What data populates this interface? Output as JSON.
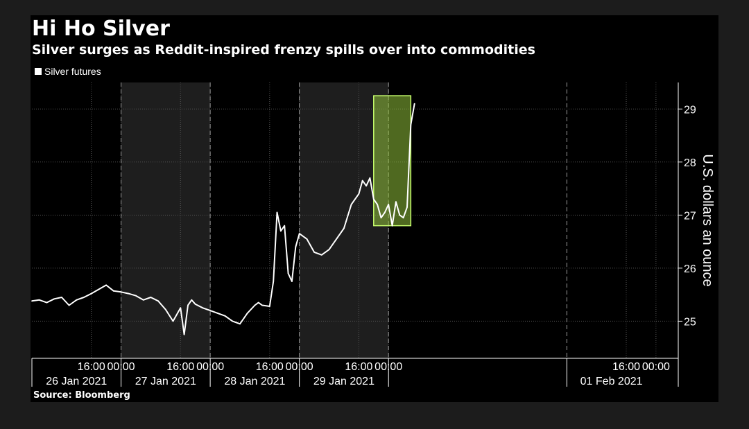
{
  "header": {
    "title": "Hi Ho Silver",
    "subtitle": "Silver surges as Reddit-inspired frenzy spills over into commodities"
  },
  "footer": {
    "source": "Source: Bloomberg"
  },
  "colors": {
    "background": "#000000",
    "line": "#ffffff",
    "highlight_fill": "#8fbf3a",
    "highlight_border": "#c8ff6e",
    "shaded_band": "#1e1e1e",
    "grid": "#555555"
  },
  "chart_data": {
    "type": "line",
    "title": "Hi Ho Silver",
    "subtitle": "Silver surges as Reddit-inspired frenzy spills over into commodities",
    "ylabel": "U.S. dollars an ounce",
    "ylim": [
      24.3,
      29.5
    ],
    "y_ticks": [
      25,
      26,
      27,
      28,
      29
    ],
    "x_time_unit": "hours",
    "xlim": [
      "2021-01-26 00:00",
      "2021-02-02 06:00"
    ],
    "x_tick_labels": [
      {
        "x": "2021-01-26 16:00",
        "label": "16:00"
      },
      {
        "x": "2021-01-27 00:00",
        "label": "00:00"
      },
      {
        "x": "2021-01-27 16:00",
        "label": "16:00"
      },
      {
        "x": "2021-01-28 00:00",
        "label": "00:00"
      },
      {
        "x": "2021-01-28 16:00",
        "label": "16:00"
      },
      {
        "x": "2021-01-29 00:00",
        "label": "00:00"
      },
      {
        "x": "2021-01-29 16:00",
        "label": "16:00"
      },
      {
        "x": "2021-01-30 00:00",
        "label": "00:00"
      },
      {
        "x": "2021-02-01 16:00",
        "label": "16:00"
      },
      {
        "x": "2021-02-02 00:00",
        "label": "00:00"
      }
    ],
    "day_labels": [
      {
        "x": "2021-01-26 12:00",
        "label": "26 Jan 2021"
      },
      {
        "x": "2021-01-27 12:00",
        "label": "27 Jan 2021"
      },
      {
        "x": "2021-01-28 12:00",
        "label": "28 Jan 2021"
      },
      {
        "x": "2021-01-29 12:00",
        "label": "29 Jan 2021"
      },
      {
        "x": "2021-02-01 12:00",
        "label": "01 Feb 2021"
      }
    ],
    "day_boundaries": [
      "2021-01-26 00:00",
      "2021-01-27 00:00",
      "2021-01-28 00:00",
      "2021-01-29 00:00",
      "2021-01-30 00:00",
      "2021-02-01 00:00",
      "2021-02-02 06:00"
    ],
    "shaded_periods": [
      [
        "2021-01-27 00:00",
        "2021-01-28 00:00"
      ],
      [
        "2021-01-29 00:00",
        "2021-01-30 00:00"
      ]
    ],
    "highlight_box": {
      "x": [
        "2021-01-29 20:00",
        "2021-01-30 06:00"
      ],
      "y": [
        26.8,
        29.25
      ]
    },
    "series": [
      {
        "name": "Silver futures",
        "x": [
          "2021-01-26 00:00",
          "2021-01-26 02:00",
          "2021-01-26 04:00",
          "2021-01-26 06:00",
          "2021-01-26 08:00",
          "2021-01-26 10:00",
          "2021-01-26 12:00",
          "2021-01-26 14:00",
          "2021-01-26 16:00",
          "2021-01-26 18:00",
          "2021-01-26 20:00",
          "2021-01-26 22:00",
          "2021-01-27 00:00",
          "2021-01-27 02:00",
          "2021-01-27 04:00",
          "2021-01-27 06:00",
          "2021-01-27 08:00",
          "2021-01-27 10:00",
          "2021-01-27 12:00",
          "2021-01-27 14:00",
          "2021-01-27 16:00",
          "2021-01-27 17:00",
          "2021-01-27 18:00",
          "2021-01-27 19:00",
          "2021-01-27 20:00",
          "2021-01-27 22:00",
          "2021-01-28 00:00",
          "2021-01-28 02:00",
          "2021-01-28 04:00",
          "2021-01-28 06:00",
          "2021-01-28 08:00",
          "2021-01-28 10:00",
          "2021-01-28 12:00",
          "2021-01-28 13:00",
          "2021-01-28 14:00",
          "2021-01-28 16:00",
          "2021-01-28 17:00",
          "2021-01-28 18:00",
          "2021-01-28 19:00",
          "2021-01-28 20:00",
          "2021-01-28 21:00",
          "2021-01-28 22:00",
          "2021-01-28 23:00",
          "2021-01-29 00:00",
          "2021-01-29 02:00",
          "2021-01-29 04:00",
          "2021-01-29 06:00",
          "2021-01-29 08:00",
          "2021-01-29 10:00",
          "2021-01-29 12:00",
          "2021-01-29 14:00",
          "2021-01-29 16:00",
          "2021-01-29 17:00",
          "2021-01-29 18:00",
          "2021-01-29 19:00",
          "2021-01-29 20:00",
          "2021-01-29 21:00",
          "2021-01-29 22:00",
          "2021-01-29 23:00",
          "2021-01-30 00:00",
          "2021-01-30 01:00",
          "2021-01-30 02:00",
          "2021-01-30 03:00",
          "2021-01-30 04:00",
          "2021-01-30 05:00",
          "2021-01-30 06:00",
          "2021-01-30 07:00"
        ],
        "values": [
          25.38,
          25.4,
          25.35,
          25.42,
          25.45,
          25.3,
          25.4,
          25.45,
          25.52,
          25.6,
          25.68,
          25.57,
          25.55,
          25.52,
          25.48,
          25.4,
          25.45,
          25.38,
          25.22,
          25.0,
          25.25,
          24.75,
          25.3,
          25.4,
          25.32,
          25.25,
          25.2,
          25.15,
          25.1,
          25.0,
          24.95,
          25.15,
          25.3,
          25.35,
          25.3,
          25.28,
          25.75,
          27.05,
          26.7,
          26.8,
          25.9,
          25.75,
          26.4,
          26.65,
          26.55,
          26.3,
          26.25,
          26.35,
          26.55,
          26.75,
          27.2,
          27.4,
          27.65,
          27.55,
          27.7,
          27.3,
          27.2,
          26.95,
          27.05,
          27.2,
          26.8,
          27.25,
          27.0,
          26.95,
          27.15,
          28.7,
          29.1
        ]
      }
    ]
  }
}
